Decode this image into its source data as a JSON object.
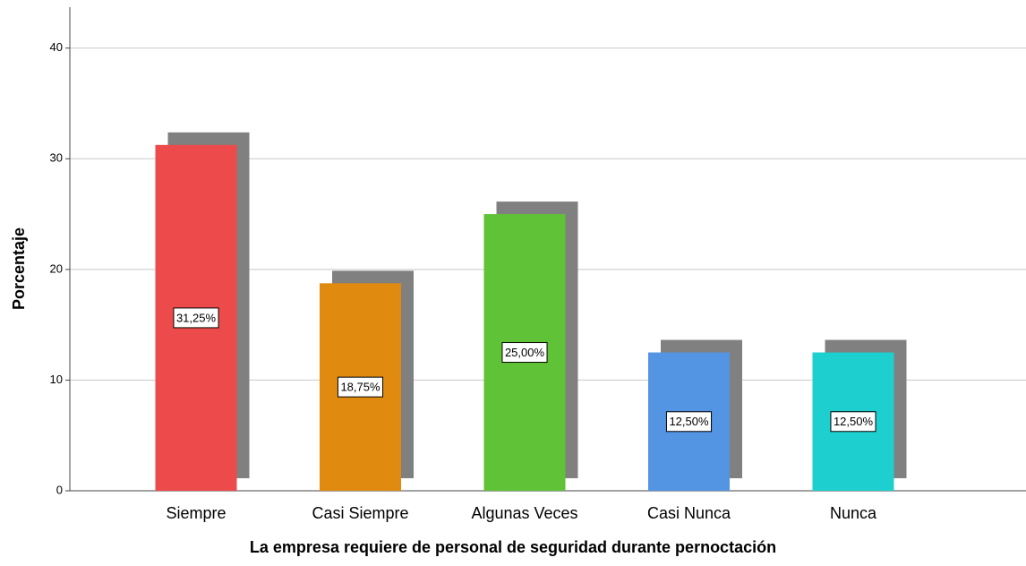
{
  "chart_data": {
    "type": "bar",
    "x_label": "La empresa requiere de personal de seguridad durante pernoctación",
    "y_label": "Porcentaje",
    "categories": [
      "Siempre",
      "Casi Siempre",
      "Algunas Veces",
      "Casi Nunca",
      "Nunca"
    ],
    "values": [
      31.25,
      18.75,
      25.0,
      12.5,
      12.5
    ],
    "value_labels": [
      "31,25%",
      "18,75%",
      "25,00%",
      "12,50%",
      "12,50%"
    ],
    "colors": [
      "#ed4b4b",
      "#e08a10",
      "#5fc237",
      "#5394e3",
      "#1ecfcf"
    ],
    "ylim": [
      0,
      43.7
    ],
    "yticks": [
      0,
      10,
      20,
      30,
      40
    ],
    "grid": true
  }
}
